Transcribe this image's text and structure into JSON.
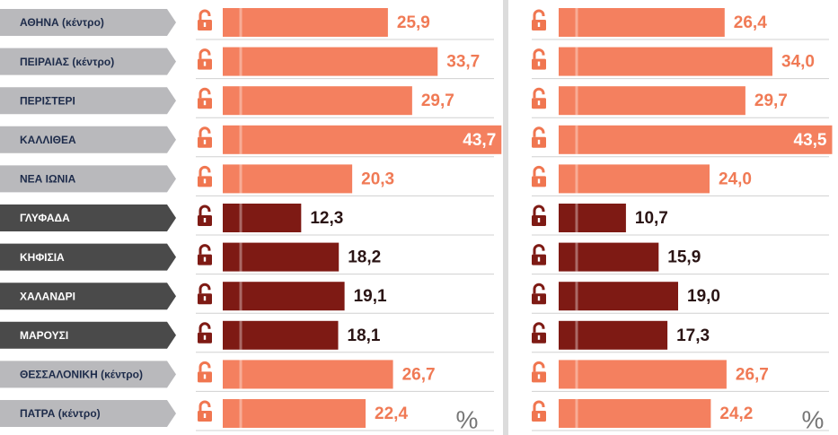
{
  "chart_data": [
    {
      "type": "hbar",
      "categories": [
        "ΑΘΗΝΑ (κέντρο)",
        "ΠΕΙΡΑΙΑΣ (κέντρο)",
        "ΠΕΡΙΣΤΕΡΙ",
        "ΚΑΛΛΙΘΕΑ",
        "ΝΕΑ ΙΩΝΙΑ",
        "ΓΛΥΦΑΔΑ",
        "ΚΗΦΙΣΙΑ",
        "ΧΑΛΑΝΔΡΙ",
        "ΜΑΡΟΥΣΙ",
        "ΘΕΣΣΑΛΟΝΙΚΗ (κέντρο)",
        "ΠΑΤΡΑ (κέντρο)"
      ],
      "values": [
        25.9,
        33.7,
        29.7,
        43.7,
        20.3,
        12.3,
        18.2,
        19.1,
        18.1,
        26.7,
        22.4
      ],
      "value_labels": [
        "25,9",
        "33,7",
        "29,7",
        "43,7",
        "20,3",
        "12,3",
        "18,2",
        "19,1",
        "18,1",
        "26,7",
        "22,4"
      ],
      "colors": [
        "#f4805f",
        "#f4805f",
        "#f4805f",
        "#f4805f",
        "#f4805f",
        "#7e1a14",
        "#7e1a14",
        "#7e1a14",
        "#7e1a14",
        "#f4805f",
        "#f4805f"
      ],
      "label_colors": [
        "#b9b9bc",
        "#b9b9bc",
        "#b9b9bc",
        "#b9b9bc",
        "#b9b9bc",
        "#4a4a4a",
        "#4a4a4a",
        "#4a4a4a",
        "#4a4a4a",
        "#b9b9bc",
        "#b9b9bc"
      ],
      "unit": "%"
    },
    {
      "type": "hbar",
      "values": [
        26.4,
        34.0,
        29.7,
        43.5,
        24.0,
        10.7,
        15.9,
        19.0,
        17.3,
        26.7,
        24.2
      ],
      "value_labels": [
        "26,4",
        "34,0",
        "29,7",
        "43,5",
        "24,0",
        "10,7",
        "15,9",
        "19,0",
        "17,3",
        "26,7",
        "24,2"
      ],
      "colors": [
        "#f4805f",
        "#f4805f",
        "#f4805f",
        "#f4805f",
        "#f4805f",
        "#7e1a14",
        "#7e1a14",
        "#7e1a14",
        "#7e1a14",
        "#f4805f",
        "#f4805f"
      ],
      "unit": "%"
    }
  ]
}
